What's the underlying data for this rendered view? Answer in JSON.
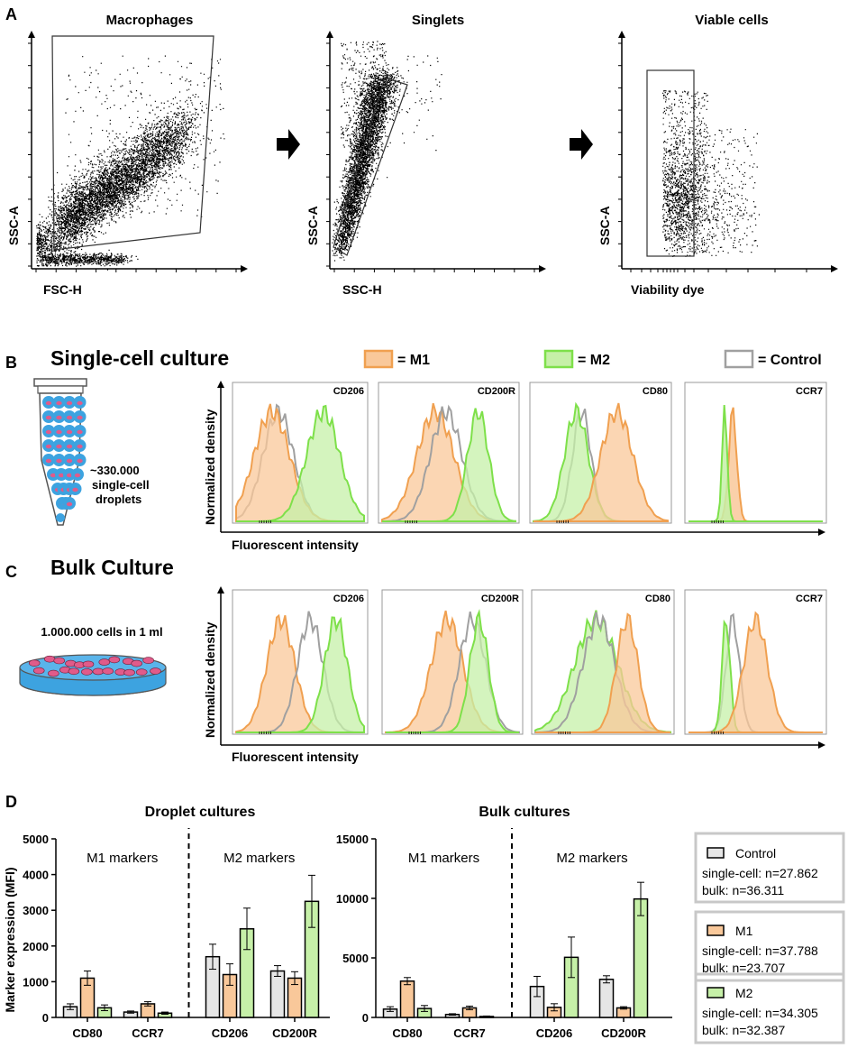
{
  "panel_letters": {
    "a": "A",
    "b": "B",
    "c": "C",
    "d": "D"
  },
  "panel_a": {
    "plots": [
      {
        "title": "Macrophages",
        "xlabel": "FSC-H",
        "ylabel": "SSC-A"
      },
      {
        "title": "Singlets",
        "xlabel": "SSC-H",
        "ylabel": "SSC-A"
      },
      {
        "title": "Viable cells",
        "xlabel": "Viability dye",
        "ylabel": "SSC-A"
      }
    ]
  },
  "panel_b": {
    "title": "Single-cell culture",
    "droplet_label_line1": "~330.000",
    "droplet_label_line2": "single-cell",
    "droplet_label_line3": "droplets",
    "ylabel": "Normalized density",
    "xlabel": "Fluorescent intensity",
    "markers": [
      "CD206",
      "CD200R",
      "CD80",
      "CCR7"
    ]
  },
  "panel_c": {
    "title": "Bulk Culture",
    "dish_label": "1.000.000 cells in 1 ml",
    "ylabel": "Normalized density",
    "xlabel": "Fluorescent intensity",
    "markers": [
      "CD206",
      "CD200R",
      "CD80",
      "CCR7"
    ]
  },
  "legend_top": {
    "m1": "= M1",
    "m2": "= M2",
    "control": "= Control"
  },
  "colors": {
    "control": "#a0a0a0",
    "m1": "#f0a050",
    "m2": "#7ee04a",
    "m1_fill": "#f9c89a",
    "m2_fill": "#c6f0a8",
    "control_fill": "#e6e6e6",
    "dish_blue": "#3da3e0",
    "cell_pink": "#e05b8a"
  },
  "panel_d": {
    "legend": {
      "control": "Control",
      "control_sc": "single-cell: n=27.862",
      "control_bulk": "bulk: n=36.311",
      "m1": "M1",
      "m1_sc": "single-cell: n=37.788",
      "m1_bulk": "bulk: n=23.707",
      "m2": "M2",
      "m2_sc": "single-cell: n=34.305",
      "m2_bulk": "bulk: n=32.387"
    }
  },
  "chart_data": [
    {
      "type": "bar",
      "title": "Droplet cultures",
      "ylabel": "Marker expression (MFI)",
      "ylim": [
        0,
        5000
      ],
      "yticks": [
        0,
        1000,
        2000,
        3000,
        4000,
        5000
      ],
      "categories": [
        "CD80",
        "CCR7",
        "CD206",
        "CD200R"
      ],
      "group_labels": [
        "M1 markers",
        "M2 markers"
      ],
      "series": [
        {
          "name": "Control",
          "values": [
            300,
            150,
            1700,
            1300
          ],
          "errors": [
            80,
            30,
            350,
            150
          ]
        },
        {
          "name": "M1",
          "values": [
            1100,
            380,
            1200,
            1100
          ],
          "errors": [
            200,
            60,
            300,
            180
          ]
        },
        {
          "name": "M2",
          "values": [
            270,
            120,
            2480,
            3250
          ],
          "errors": [
            80,
            30,
            580,
            730
          ]
        }
      ]
    },
    {
      "type": "bar",
      "title": "Bulk cultures",
      "ylabel": "",
      "ylim": [
        0,
        15000
      ],
      "yticks": [
        0,
        5000,
        10000,
        15000
      ],
      "categories": [
        "CD80",
        "CCR7",
        "CD206",
        "CD200R"
      ],
      "group_labels": [
        "M1 markers",
        "M2 markers"
      ],
      "series": [
        {
          "name": "Control",
          "values": [
            700,
            250,
            2600,
            3200
          ],
          "errors": [
            200,
            60,
            850,
            300
          ]
        },
        {
          "name": "M1",
          "values": [
            3050,
            800,
            850,
            800
          ],
          "errors": [
            300,
            150,
            300,
            100
          ]
        },
        {
          "name": "M2",
          "values": [
            750,
            80,
            5050,
            9950
          ],
          "errors": [
            250,
            40,
            1700,
            1400
          ]
        }
      ]
    }
  ]
}
